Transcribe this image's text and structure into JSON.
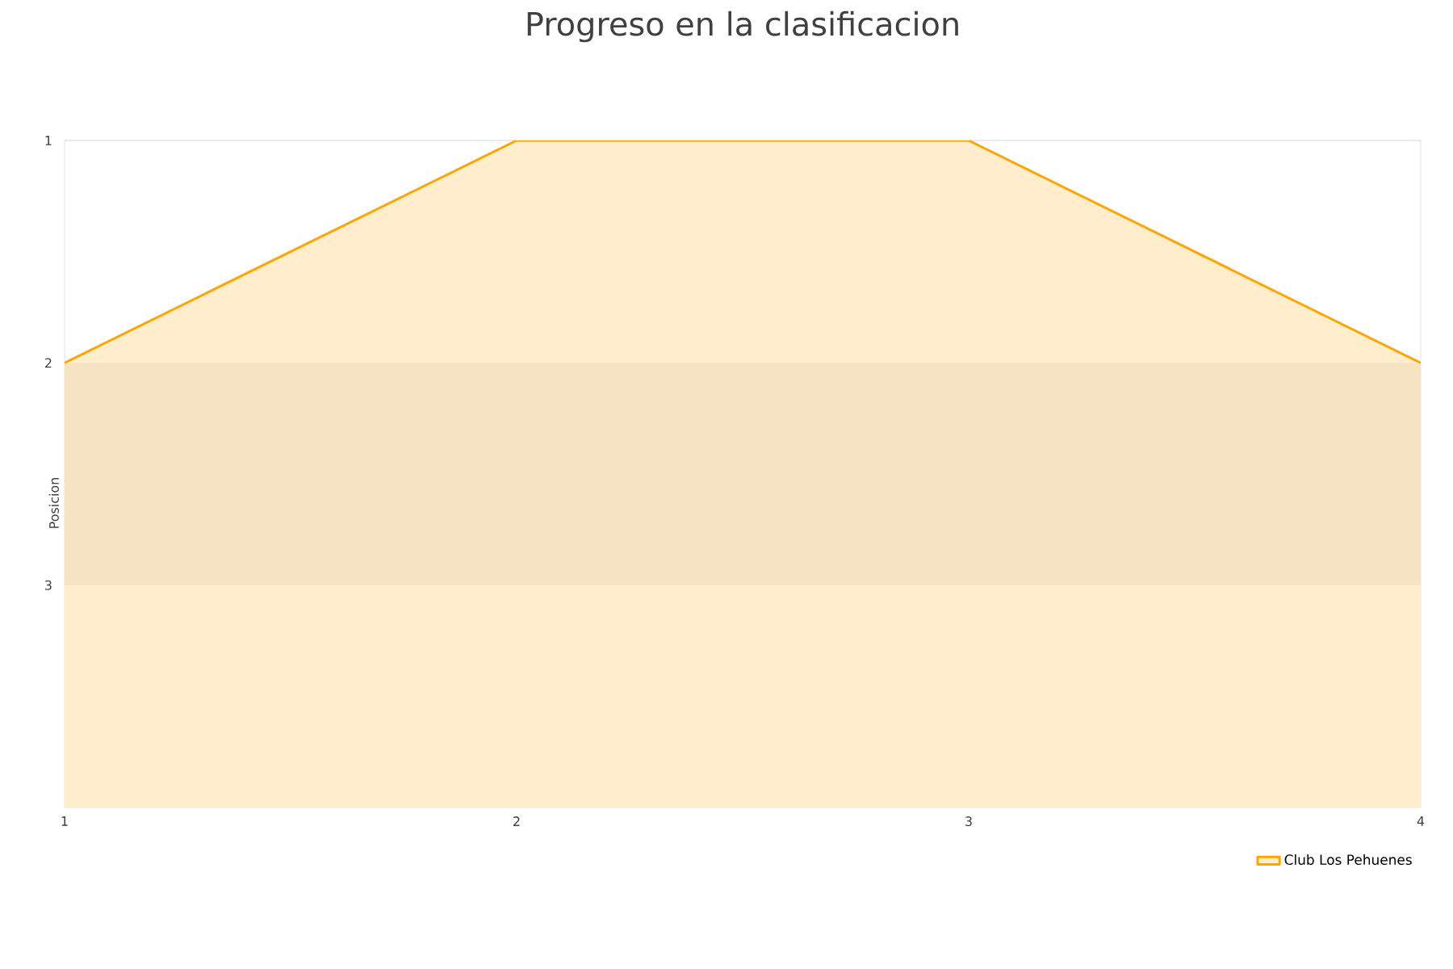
{
  "chart_data": {
    "type": "area",
    "title": "Progreso en la clasificacion",
    "ylabel": "Posicion",
    "x": [
      1,
      2,
      3,
      4
    ],
    "xlim": [
      1,
      4
    ],
    "xticks": [
      1,
      2,
      3,
      4
    ],
    "ylim": [
      4,
      1
    ],
    "yticks": [
      1,
      2,
      3
    ],
    "grid": "y",
    "legend": "bottom right",
    "series": [
      {
        "name": "Club Los Pehuenes",
        "color": "#ffa500",
        "values": [
          2,
          1,
          1,
          2
        ]
      }
    ],
    "bands": [
      {
        "axis": "y",
        "from": 2,
        "to": 3,
        "color": "#f5e3c2"
      }
    ]
  }
}
